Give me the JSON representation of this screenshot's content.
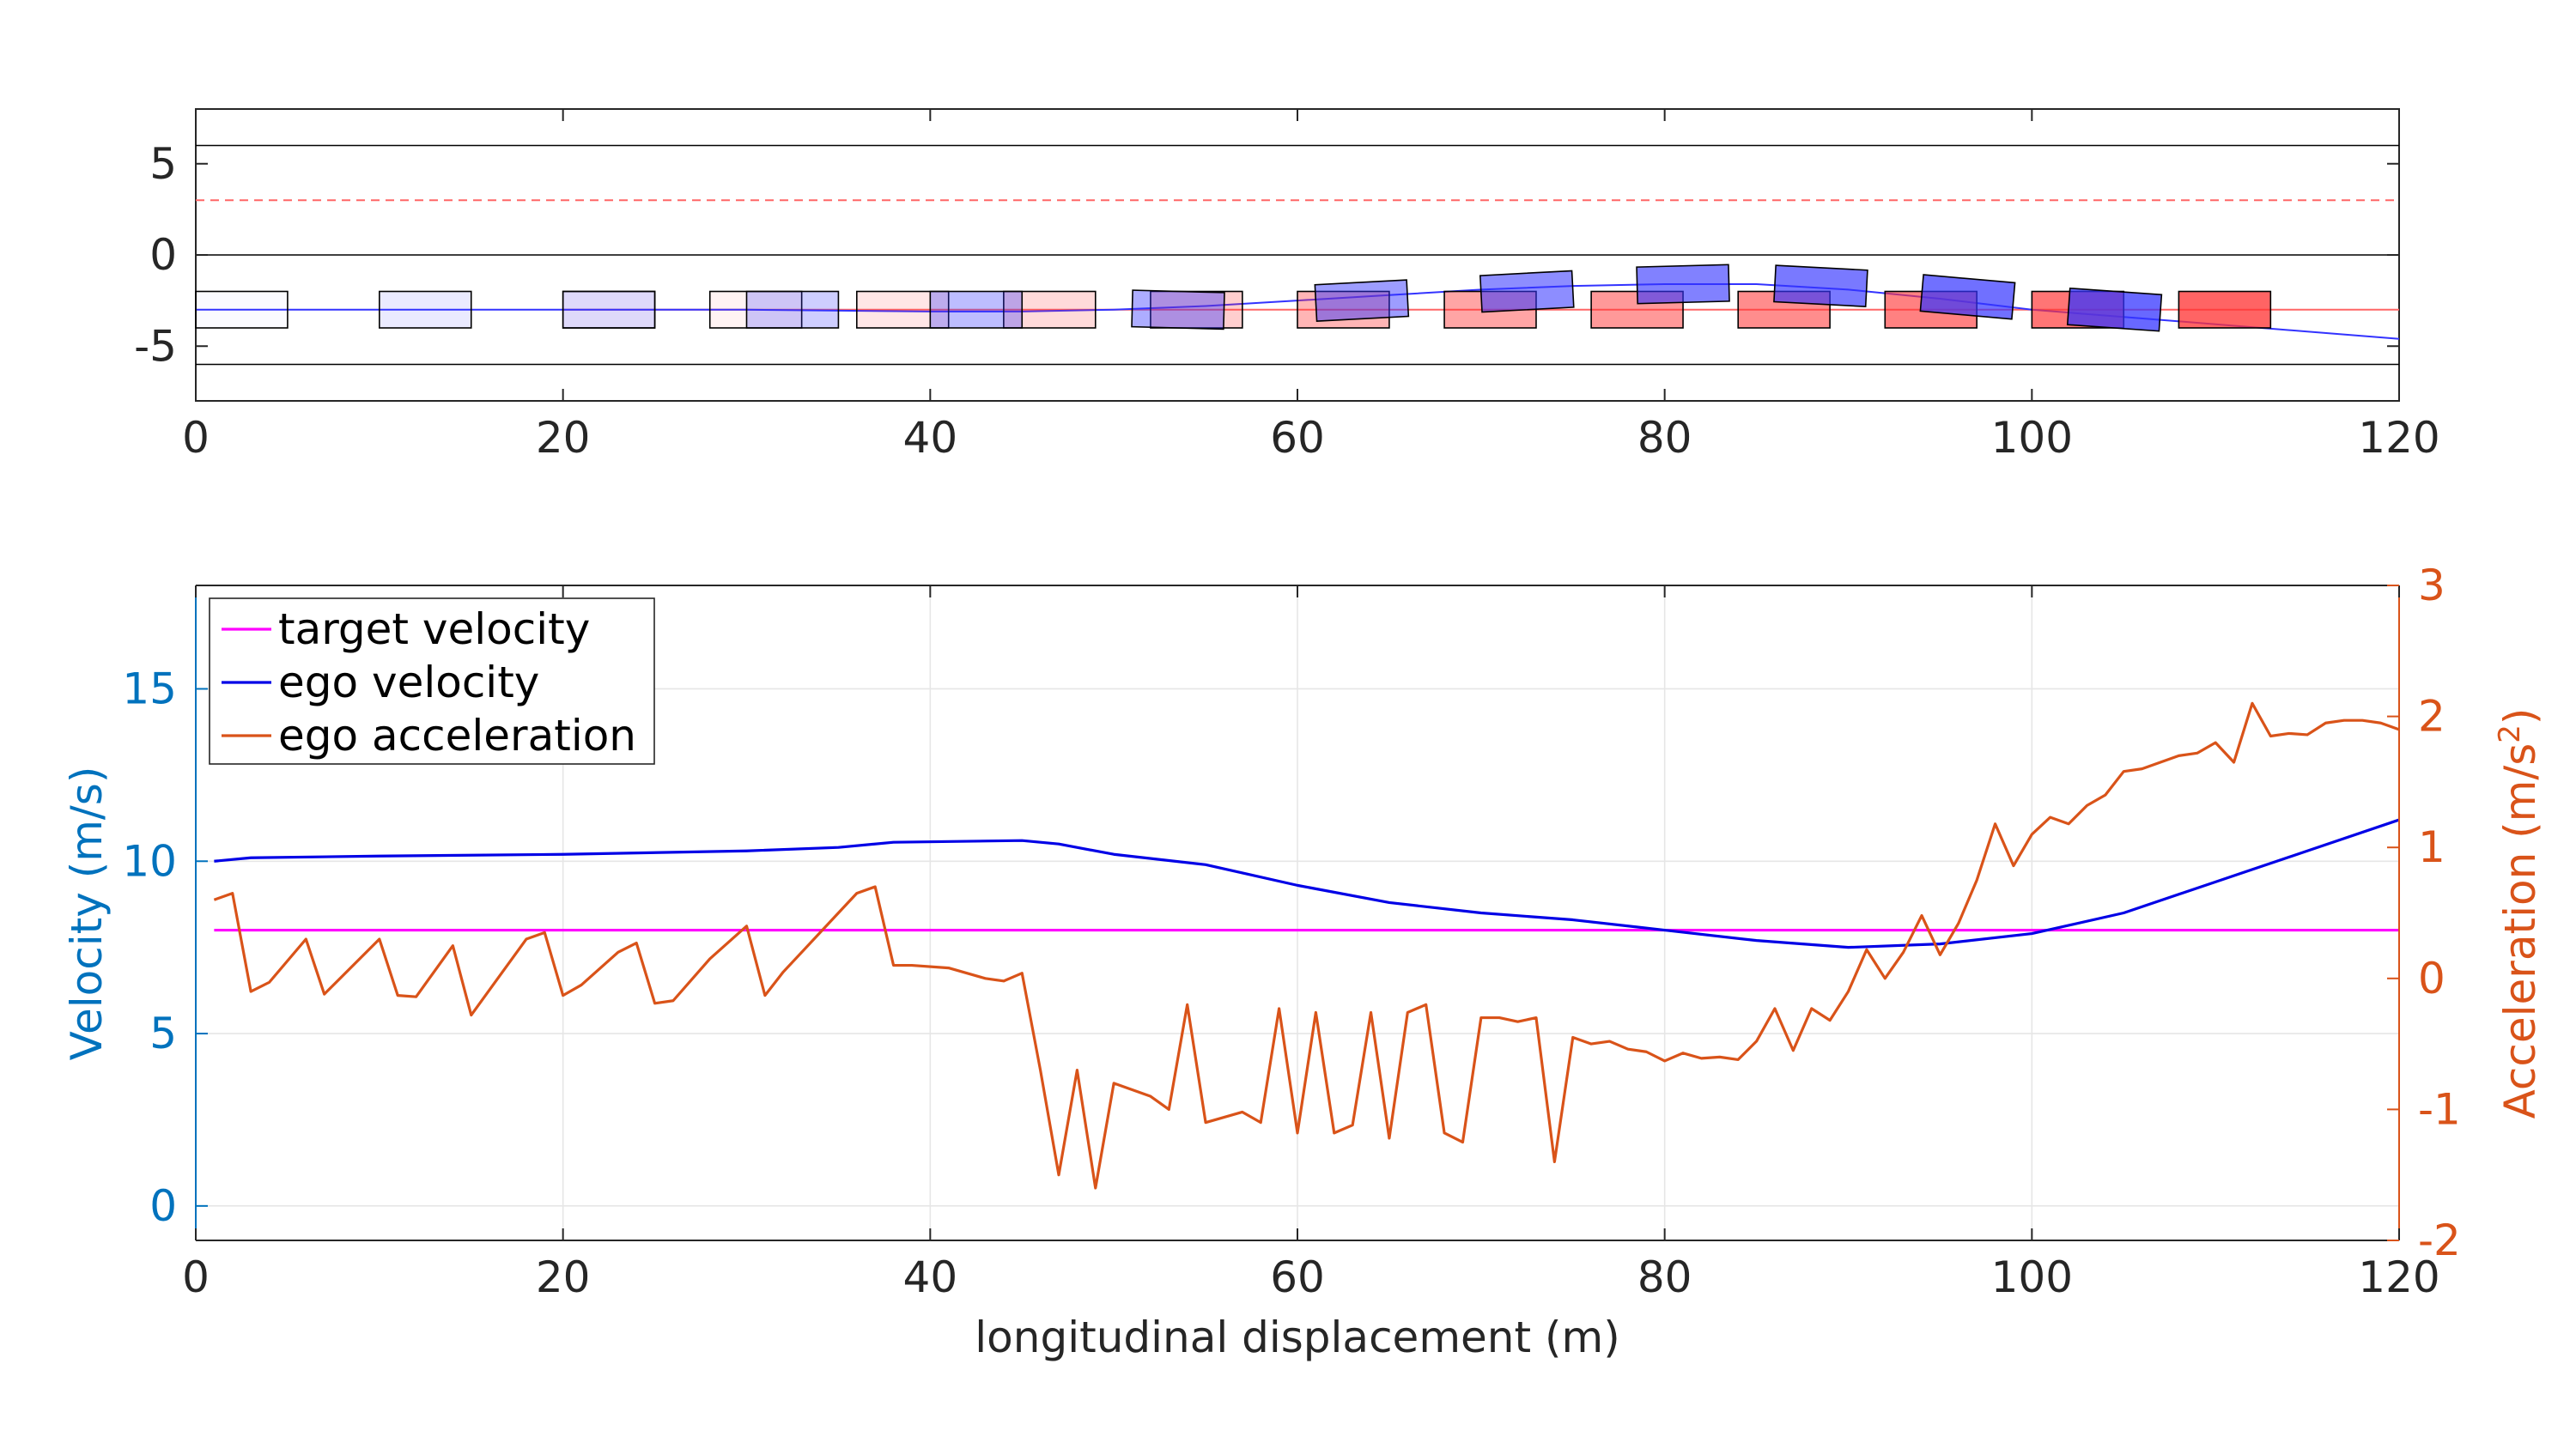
{
  "chart_data": [
    {
      "type": "scatter",
      "title": "",
      "xlabel": "",
      "ylabel": "",
      "xlim": [
        0,
        120
      ],
      "ylim": [
        -8,
        8
      ],
      "xticks": [
        0,
        20,
        40,
        60,
        80,
        100,
        120
      ],
      "yticks": [
        5,
        0,
        -5
      ],
      "ytick_labels": [
        "5",
        "0",
        "-5"
      ],
      "grid": false,
      "lane_lines": {
        "solid_y": [
          6,
          0,
          -6
        ],
        "dashed_y": 3,
        "solid_color": "#000000",
        "dashed_color": "#ff6666"
      },
      "reference_path": {
        "color": "#ff6666",
        "y": -3,
        "x": [
          20,
          120
        ]
      },
      "ego_path": {
        "color": "#3333ff",
        "points": [
          [
            0,
            -3
          ],
          [
            20,
            -3
          ],
          [
            30,
            -3
          ],
          [
            40,
            -3.1
          ],
          [
            45,
            -3.1
          ],
          [
            50,
            -3.0
          ],
          [
            55,
            -2.8
          ],
          [
            60,
            -2.5
          ],
          [
            65,
            -2.2
          ],
          [
            70,
            -1.9
          ],
          [
            75,
            -1.7
          ],
          [
            80,
            -1.6
          ],
          [
            85,
            -1.6
          ],
          [
            90,
            -1.9
          ],
          [
            95,
            -2.4
          ],
          [
            100,
            -3.0
          ],
          [
            105,
            -3.4
          ],
          [
            110,
            -3.8
          ],
          [
            115,
            -4.2
          ],
          [
            120,
            -4.6
          ]
        ]
      },
      "vehicle_length": 5,
      "vehicle_width": 2,
      "ego_color": "#3333ff",
      "target_color": "#ff3333",
      "ego_vehicles": [
        {
          "x": 0,
          "y": -3,
          "angle": 0,
          "alpha": 0.02
        },
        {
          "x": 10,
          "y": -3,
          "angle": 0,
          "alpha": 0.1
        },
        {
          "x": 20,
          "y": -3,
          "angle": 0,
          "alpha": 0.16
        },
        {
          "x": 30,
          "y": -3,
          "angle": 0,
          "alpha": 0.24
        },
        {
          "x": 40,
          "y": -3,
          "angle": 0,
          "alpha": 0.32
        },
        {
          "x": 51,
          "y": -3,
          "angle": 1.5,
          "alpha": 0.4
        },
        {
          "x": 61,
          "y": -2.5,
          "angle": -3,
          "alpha": 0.48
        },
        {
          "x": 70,
          "y": -2.0,
          "angle": -3,
          "alpha": 0.56
        },
        {
          "x": 78.5,
          "y": -1.6,
          "angle": -1.5,
          "alpha": 0.62
        },
        {
          "x": 86,
          "y": -1.7,
          "angle": 3,
          "alpha": 0.66
        },
        {
          "x": 94,
          "y": -2.3,
          "angle": 5,
          "alpha": 0.7
        },
        {
          "x": 102,
          "y": -3.0,
          "angle": 4,
          "alpha": 0.74
        }
      ],
      "target_vehicles": [
        {
          "x": 20,
          "y": -3,
          "alpha": 0.03
        },
        {
          "x": 28,
          "y": -3,
          "alpha": 0.06
        },
        {
          "x": 36,
          "y": -3,
          "alpha": 0.12
        },
        {
          "x": 44,
          "y": -3,
          "alpha": 0.18
        },
        {
          "x": 52,
          "y": -3,
          "alpha": 0.24
        },
        {
          "x": 60,
          "y": -3,
          "alpha": 0.36
        },
        {
          "x": 68,
          "y": -3,
          "alpha": 0.44
        },
        {
          "x": 76,
          "y": -3,
          "alpha": 0.5
        },
        {
          "x": 84,
          "y": -3,
          "alpha": 0.56
        },
        {
          "x": 92,
          "y": -3,
          "alpha": 0.62
        },
        {
          "x": 100,
          "y": -3,
          "alpha": 0.68
        },
        {
          "x": 108,
          "y": -3,
          "alpha": 0.76
        }
      ]
    },
    {
      "type": "line",
      "title": "",
      "xlabel": "longitudinal displacement (m)",
      "ylabel": "Velocity (m/s)",
      "ylabel_right": "Acceleration (m/s",
      "ylabel_right_sup": "2",
      "ylabel_right_tail": ")",
      "xlim": [
        0,
        120
      ],
      "ylim": [
        -1,
        18
      ],
      "ylim_right": [
        -2,
        3
      ],
      "xticks": [
        0,
        20,
        40,
        60,
        80,
        100,
        120
      ],
      "yticks": [
        0,
        5,
        10,
        15
      ],
      "yticks_right": [
        -2,
        -1,
        0,
        1,
        2,
        3
      ],
      "ytick_labels_right": [
        "-2",
        "-1",
        "0",
        "1",
        "2",
        "3"
      ],
      "left_axis_color": "#0072bd",
      "right_axis_color": "#d95319",
      "grid": true,
      "legend_position": "top-left",
      "series": [
        {
          "name": "target velocity",
          "color": "#ff00ff",
          "axis": "left",
          "points": [
            [
              1,
              8
            ],
            [
              120,
              8
            ]
          ]
        },
        {
          "name": "ego velocity",
          "color": "#0000e6",
          "axis": "left",
          "points": [
            [
              1,
              10.0
            ],
            [
              3,
              10.1
            ],
            [
              10,
              10.15
            ],
            [
              20,
              10.2
            ],
            [
              30,
              10.3
            ],
            [
              35,
              10.4
            ],
            [
              38,
              10.55
            ],
            [
              45,
              10.6
            ],
            [
              47,
              10.5
            ],
            [
              50,
              10.2
            ],
            [
              55,
              9.9
            ],
            [
              60,
              9.3
            ],
            [
              65,
              8.8
            ],
            [
              70,
              8.5
            ],
            [
              75,
              8.3
            ],
            [
              80,
              8.0
            ],
            [
              85,
              7.7
            ],
            [
              90,
              7.5
            ],
            [
              95,
              7.6
            ],
            [
              100,
              7.9
            ],
            [
              105,
              8.5
            ],
            [
              110,
              9.4
            ],
            [
              115,
              10.3
            ],
            [
              120,
              11.2
            ]
          ]
        },
        {
          "name": "ego acceleration",
          "color": "#d95319",
          "axis": "right",
          "points": [
            [
              1,
              0.6
            ],
            [
              2,
              0.65
            ],
            [
              3,
              -0.1
            ],
            [
              4,
              -0.03
            ],
            [
              6,
              0.3
            ],
            [
              7,
              -0.12
            ],
            [
              10,
              0.3
            ],
            [
              11,
              -0.13
            ],
            [
              12,
              -0.14
            ],
            [
              14,
              0.25
            ],
            [
              15,
              -0.28
            ],
            [
              18,
              0.3
            ],
            [
              19,
              0.35
            ],
            [
              20,
              -0.13
            ],
            [
              21,
              -0.05
            ],
            [
              23,
              0.2
            ],
            [
              24,
              0.27
            ],
            [
              25,
              -0.19
            ],
            [
              26,
              -0.17
            ],
            [
              28,
              0.15
            ],
            [
              30,
              0.4
            ],
            [
              31,
              -0.13
            ],
            [
              32,
              0.05
            ],
            [
              33,
              0.2
            ],
            [
              35,
              0.5
            ],
            [
              36,
              0.65
            ],
            [
              37,
              0.7
            ],
            [
              38,
              0.1
            ],
            [
              39,
              0.1
            ],
            [
              41,
              0.08
            ],
            [
              43,
              0.0
            ],
            [
              44,
              -0.02
            ],
            [
              45,
              0.04
            ],
            [
              46,
              -0.7
            ],
            [
              47,
              -1.5
            ],
            [
              48,
              -0.7
            ],
            [
              49,
              -1.6
            ],
            [
              50,
              -0.8
            ],
            [
              51,
              -0.85
            ],
            [
              52,
              -0.9
            ],
            [
              53,
              -1.0
            ],
            [
              54,
              -0.2
            ],
            [
              55,
              -1.1
            ],
            [
              57,
              -1.02
            ],
            [
              58,
              -1.1
            ],
            [
              59,
              -0.23
            ],
            [
              60,
              -1.18
            ],
            [
              61,
              -0.26
            ],
            [
              62,
              -1.18
            ],
            [
              63,
              -1.12
            ],
            [
              64,
              -0.26
            ],
            [
              65,
              -1.22
            ],
            [
              66,
              -0.26
            ],
            [
              67,
              -0.2
            ],
            [
              68,
              -1.18
            ],
            [
              69,
              -1.25
            ],
            [
              70,
              -0.3
            ],
            [
              71,
              -0.3
            ],
            [
              72,
              -0.33
            ],
            [
              73,
              -0.3
            ],
            [
              74,
              -1.4
            ],
            [
              75,
              -0.45
            ],
            [
              76,
              -0.5
            ],
            [
              77,
              -0.48
            ],
            [
              78,
              -0.54
            ],
            [
              79,
              -0.56
            ],
            [
              80,
              -0.63
            ],
            [
              81,
              -0.57
            ],
            [
              82,
              -0.61
            ],
            [
              83,
              -0.6
            ],
            [
              84,
              -0.62
            ],
            [
              85,
              -0.48
            ],
            [
              86,
              -0.23
            ],
            [
              87,
              -0.55
            ],
            [
              88,
              -0.23
            ],
            [
              89,
              -0.32
            ],
            [
              90,
              -0.1
            ],
            [
              91,
              0.22
            ],
            [
              92,
              0.0
            ],
            [
              93,
              0.2
            ],
            [
              94,
              0.48
            ],
            [
              95,
              0.18
            ],
            [
              96,
              0.42
            ],
            [
              97,
              0.75
            ],
            [
              98,
              1.18
            ],
            [
              99,
              0.86
            ],
            [
              100,
              1.1
            ],
            [
              101,
              1.23
            ],
            [
              102,
              1.18
            ],
            [
              103,
              1.32
            ],
            [
              104,
              1.4
            ],
            [
              105,
              1.58
            ],
            [
              106,
              1.6
            ],
            [
              107,
              1.65
            ],
            [
              108,
              1.7
            ],
            [
              109,
              1.72
            ],
            [
              110,
              1.8
            ],
            [
              111,
              1.65
            ],
            [
              112,
              2.1
            ],
            [
              113,
              1.85
            ],
            [
              114,
              1.87
            ],
            [
              115,
              1.86
            ],
            [
              116,
              1.95
            ],
            [
              117,
              1.97
            ],
            [
              118,
              1.97
            ],
            [
              119,
              1.95
            ],
            [
              120,
              1.9
            ]
          ]
        }
      ]
    }
  ]
}
